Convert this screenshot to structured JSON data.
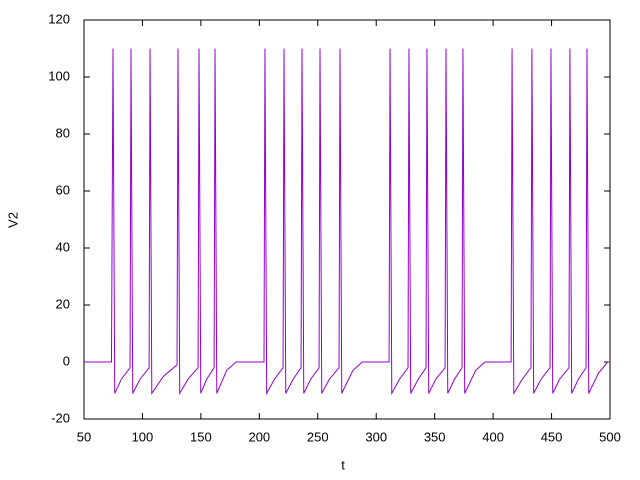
{
  "chart_data": {
    "type": "line",
    "xlabel": "t",
    "ylabel": "V2",
    "x": [
      50,
      73.5,
      74.8,
      76.3,
      82,
      89.4,
      90.2,
      91.7,
      98,
      105.7,
      106.5,
      108,
      118,
      129.6,
      130.4,
      131.9,
      139,
      147.6,
      148.4,
      149.9,
      155,
      161.3,
      162.1,
      163.6,
      172,
      180,
      204,
      204.8,
      206.3,
      213,
      220.3,
      221.1,
      222.6,
      229,
      235.7,
      236.5,
      238,
      244,
      251.1,
      251.9,
      253.4,
      260,
      268.2,
      269,
      270.5,
      280,
      288,
      311,
      311.8,
      313.3,
      320,
      327.2,
      328,
      329.5,
      336,
      342.6,
      343.4,
      344.9,
      351,
      358.9,
      359.7,
      361.2,
      367,
      373.4,
      374.2,
      375.7,
      385,
      393,
      415.4,
      416.2,
      417.7,
      425,
      432.4,
      433.2,
      434.7,
      441,
      448.7,
      449.5,
      451,
      457,
      464.9,
      465.7,
      467.2,
      473,
      479.5,
      480.3,
      481.8,
      490,
      498,
      500
    ],
    "values": [
      0,
      0,
      110,
      -11,
      -6,
      -2,
      110,
      -11,
      -6,
      -2,
      110,
      -11,
      -5,
      -1,
      110,
      -11,
      -6,
      -2,
      110,
      -11,
      -6,
      -2,
      110,
      -11,
      -3,
      0,
      0,
      110,
      -11,
      -6,
      -2,
      110,
      -11,
      -6,
      -2,
      110,
      -11,
      -6,
      -2,
      110,
      -11,
      -6,
      -2,
      110,
      -11,
      -3,
      0,
      0,
      110,
      -11,
      -6,
      -2,
      110,
      -11,
      -6,
      -2,
      110,
      -11,
      -6,
      -2,
      110,
      -11,
      -6,
      -2,
      110,
      -11,
      -3,
      0,
      0,
      110,
      -11,
      -6,
      -2,
      110,
      -11,
      -6,
      -2,
      110,
      -11,
      -6,
      -2,
      110,
      -11,
      -6,
      -2,
      110,
      -11,
      -4,
      0,
      0
    ],
    "color": "#9400d3",
    "xlim": [
      50,
      500
    ],
    "xticks": [
      50,
      100,
      150,
      200,
      250,
      300,
      350,
      400,
      450,
      500
    ],
    "ylim": [
      -20,
      120
    ],
    "yticks": [
      -20,
      0,
      20,
      40,
      60,
      80,
      100,
      120
    ]
  }
}
